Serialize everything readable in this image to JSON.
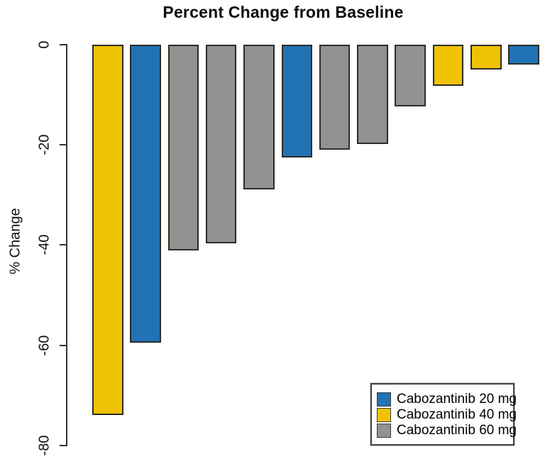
{
  "figure": {
    "background": "#ffffff",
    "axis_color": "#343434",
    "bar_outline_color": "#2e2c29"
  },
  "chart_data": {
    "type": "bar",
    "title": "Percent Change from Baseline",
    "xlabel": "",
    "ylabel": "% Change",
    "ylim": [
      -80,
      0
    ],
    "yticks": [
      0,
      -20,
      -40,
      -60,
      -80
    ],
    "ytick_labels": [
      "0",
      "-20",
      "-40",
      "-60",
      "-80"
    ],
    "grid": false,
    "legend_position": "bottom-right",
    "legend": {
      "entries": [
        {
          "label": "Cabozantinib 20 mg",
          "color": "#2273B5"
        },
        {
          "label": "Cabozantinib 40 mg",
          "color": "#EFC204"
        },
        {
          "label": "Cabozantinib 60 mg",
          "color": "#949191"
        }
      ]
    },
    "bars": [
      {
        "value": -73.7,
        "group": "Cabozantinib 40 mg"
      },
      {
        "value": -59.3,
        "group": "Cabozantinib 20 mg"
      },
      {
        "value": -40.8,
        "group": "Cabozantinib 60 mg"
      },
      {
        "value": -39.4,
        "group": "Cabozantinib 60 mg"
      },
      {
        "value": -28.7,
        "group": "Cabozantinib 60 mg"
      },
      {
        "value": -22.3,
        "group": "Cabozantinib 20 mg"
      },
      {
        "value": -20.8,
        "group": "Cabozantinib 60 mg"
      },
      {
        "value": -19.6,
        "group": "Cabozantinib 60 mg"
      },
      {
        "value": -12.1,
        "group": "Cabozantinib 60 mg"
      },
      {
        "value": -8.0,
        "group": "Cabozantinib 40 mg"
      },
      {
        "value": -4.8,
        "group": "Cabozantinib 40 mg"
      },
      {
        "value": -3.8,
        "group": "Cabozantinib 20 mg"
      }
    ]
  }
}
